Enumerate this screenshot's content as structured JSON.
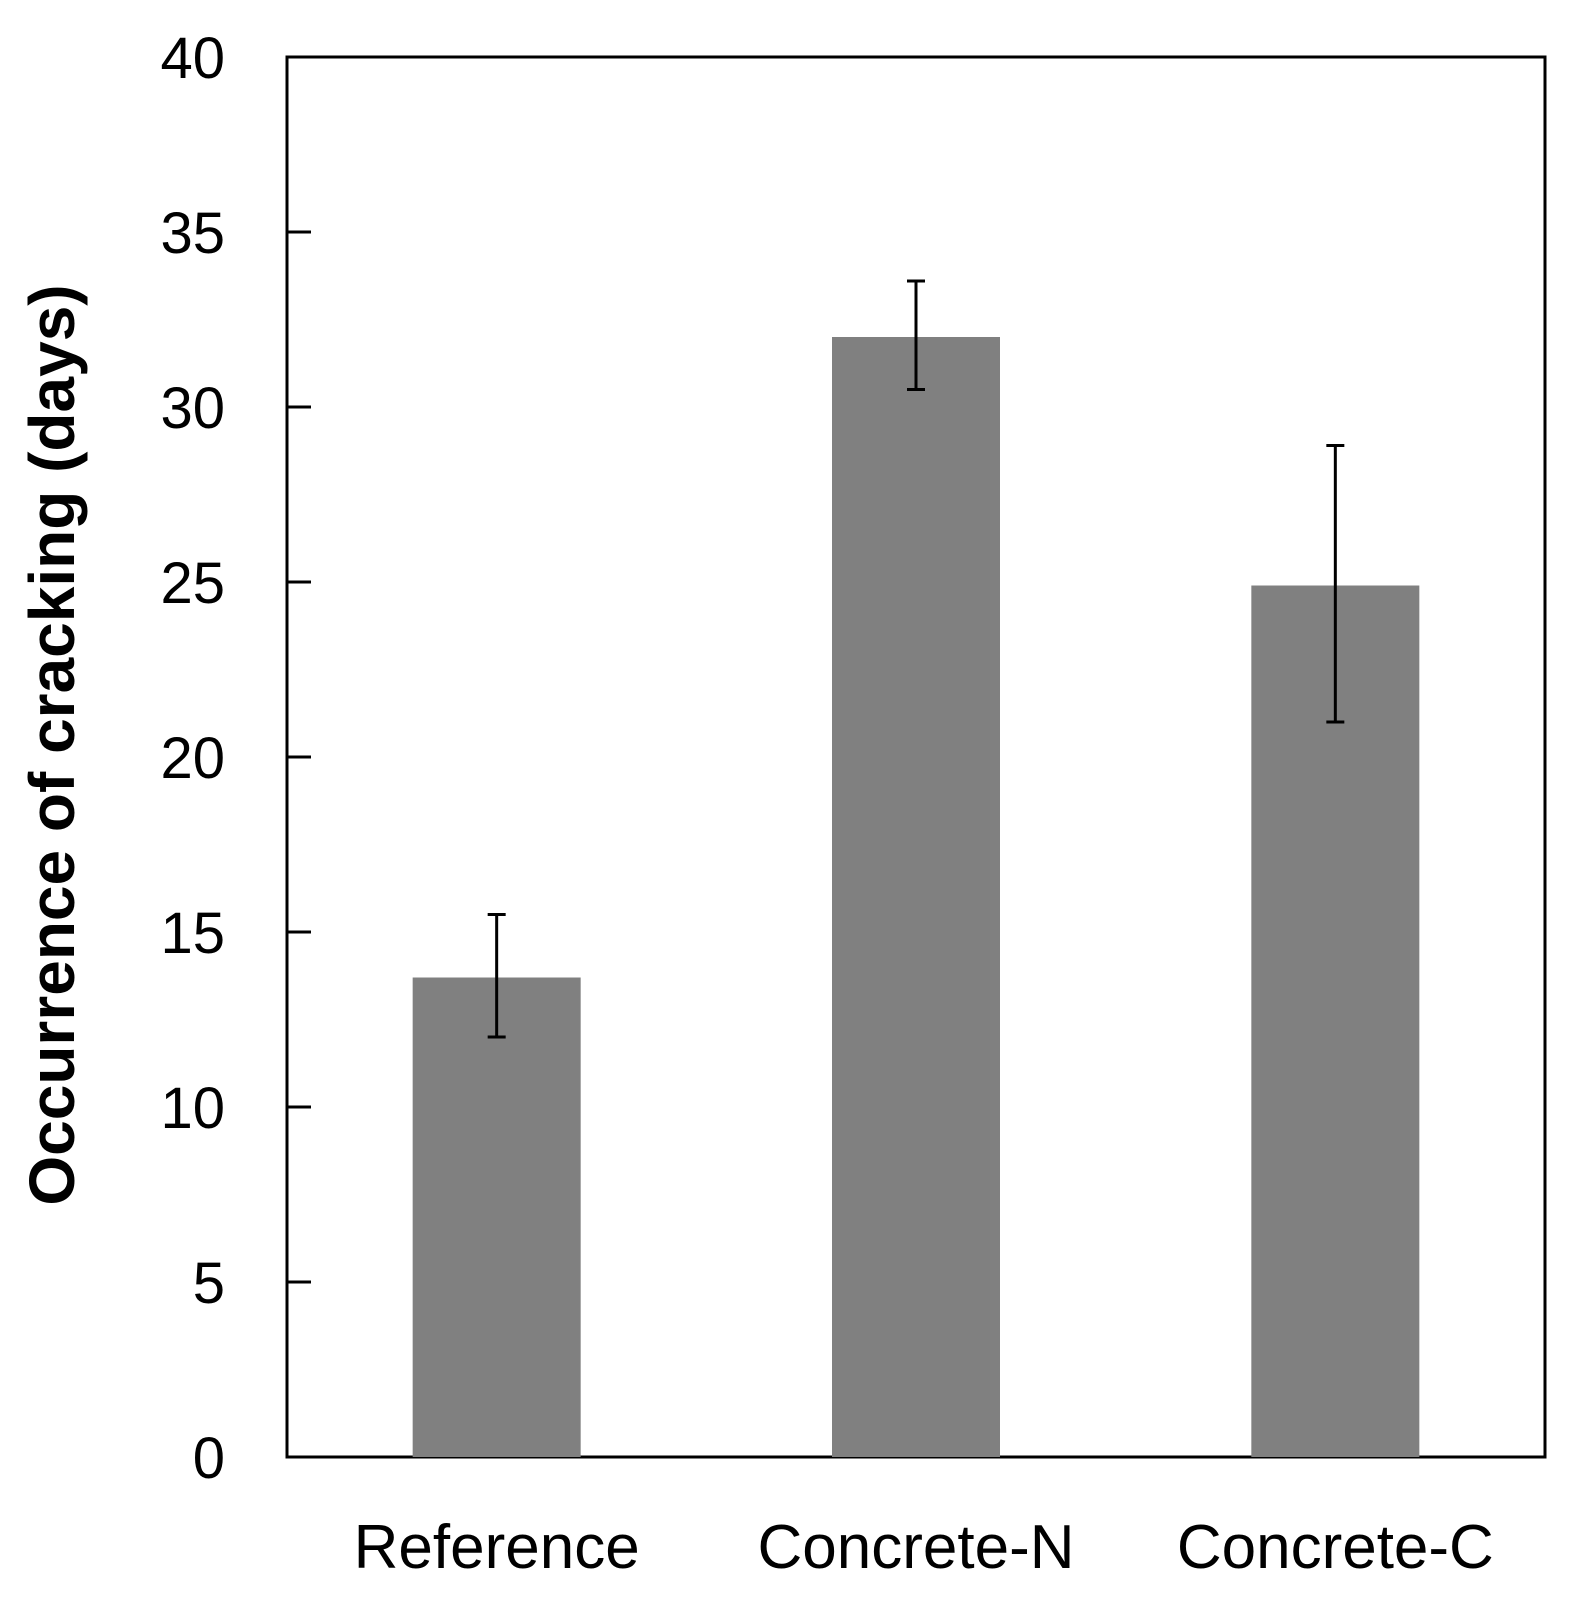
{
  "chart_data": {
    "type": "bar",
    "title": "",
    "xlabel": "",
    "ylabel": "Occurrence of cracking (days)",
    "categories": [
      "Reference",
      "Concrete-N",
      "Concrete-C"
    ],
    "values": [
      13.7,
      32.0,
      24.9
    ],
    "error_low": [
      12.0,
      30.5,
      21.0
    ],
    "error_high": [
      15.5,
      33.6,
      28.9
    ],
    "ylim": [
      0,
      40
    ],
    "yticks": [
      0,
      5,
      10,
      15,
      20,
      25,
      30,
      35,
      40
    ],
    "grid": false,
    "legend": "none",
    "bar_color": "#808080",
    "axis_color": "#000000"
  }
}
